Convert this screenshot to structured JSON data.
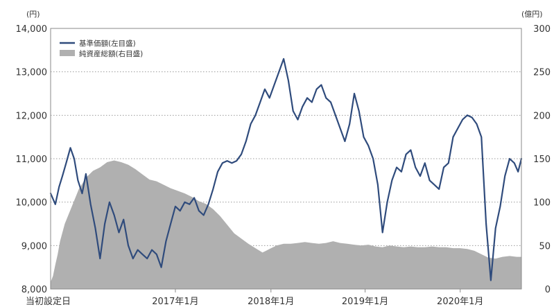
{
  "chart_data": {
    "type": "line",
    "left_unit": "(円)",
    "right_unit": "(億円)",
    "left_ticks": [
      "14,000",
      "13,000",
      "12,000",
      "11,000",
      "10,000",
      "9,000",
      "8,000"
    ],
    "right_ticks": [
      "300",
      "250",
      "200",
      "150",
      "100",
      "50",
      "0"
    ],
    "x_ticks": [
      "当初設定日",
      "2017年1月",
      "2018年1月",
      "2019年1月",
      "2020年1月"
    ],
    "ylim_left": [
      8000,
      14000
    ],
    "ylim_right": [
      0,
      300
    ],
    "grid": "horizontal-dotted",
    "legend_position": "top-left",
    "colors": {
      "nav": "#2f4b7c",
      "assets": "#b0b0b0",
      "frame": "#8a8a8a",
      "grid": "#9a9a9a"
    },
    "series": [
      {
        "name": "基準価額(左目盛)",
        "kind": "line",
        "axis": "left",
        "x": [
          0,
          0.01,
          0.018,
          0.025,
          0.033,
          0.042,
          0.05,
          0.058,
          0.067,
          0.075,
          0.085,
          0.095,
          0.105,
          0.115,
          0.125,
          0.135,
          0.145,
          0.155,
          0.165,
          0.175,
          0.185,
          0.195,
          0.205,
          0.215,
          0.225,
          0.235,
          0.245,
          0.255,
          0.265,
          0.275,
          0.285,
          0.295,
          0.305,
          0.315,
          0.325,
          0.335,
          0.345,
          0.355,
          0.365,
          0.375,
          0.385,
          0.395,
          0.405,
          0.415,
          0.425,
          0.435,
          0.445,
          0.455,
          0.465,
          0.475,
          0.485,
          0.495,
          0.505,
          0.515,
          0.525,
          0.535,
          0.545,
          0.555,
          0.565,
          0.575,
          0.585,
          0.595,
          0.605,
          0.615,
          0.625,
          0.635,
          0.645,
          0.655,
          0.665,
          0.675,
          0.685,
          0.695,
          0.705,
          0.715,
          0.725,
          0.735,
          0.745,
          0.755,
          0.765,
          0.775,
          0.785,
          0.795,
          0.805,
          0.815,
          0.825,
          0.835,
          0.845,
          0.855,
          0.865,
          0.875,
          0.885,
          0.895,
          0.905,
          0.915,
          0.925,
          0.935,
          0.945,
          0.955,
          0.965,
          0.975,
          0.985,
          0.993,
          1.0
        ],
        "values": [
          10200,
          9950,
          10350,
          10600,
          10900,
          11250,
          11000,
          10500,
          10200,
          10650,
          9950,
          9400,
          8700,
          9500,
          10000,
          9700,
          9300,
          9600,
          9000,
          8700,
          8900,
          8800,
          8700,
          8900,
          8800,
          8500,
          9100,
          9500,
          9900,
          9800,
          10000,
          9950,
          10100,
          9800,
          9700,
          9950,
          10300,
          10700,
          10900,
          10950,
          10900,
          10950,
          11100,
          11400,
          11800,
          12000,
          12300,
          12600,
          12400,
          12700,
          13000,
          13300,
          12800,
          12100,
          11900,
          12200,
          12400,
          12300,
          12600,
          12700,
          12400,
          12300,
          12000,
          11700,
          11400,
          11800,
          12500,
          12100,
          11500,
          11300,
          11000,
          10400,
          9300,
          10000,
          10500,
          10800,
          10700,
          11100,
          11200,
          10800,
          10600,
          10900,
          10500,
          10400,
          10300,
          10800,
          10900,
          11500,
          11700,
          11900,
          12000,
          11950,
          11800,
          11500,
          9500,
          8200,
          9400,
          9900,
          10600,
          11000,
          10900,
          10700,
          11000
        ]
      },
      {
        "name": "純資産総額(右目盛)",
        "kind": "area",
        "axis": "right",
        "x": [
          0,
          0.005,
          0.01,
          0.015,
          0.02,
          0.03,
          0.045,
          0.06,
          0.075,
          0.09,
          0.105,
          0.12,
          0.135,
          0.15,
          0.165,
          0.18,
          0.195,
          0.21,
          0.225,
          0.24,
          0.255,
          0.27,
          0.285,
          0.3,
          0.315,
          0.33,
          0.345,
          0.36,
          0.375,
          0.39,
          0.405,
          0.42,
          0.435,
          0.45,
          0.465,
          0.48,
          0.495,
          0.51,
          0.525,
          0.54,
          0.555,
          0.57,
          0.585,
          0.6,
          0.615,
          0.63,
          0.645,
          0.66,
          0.675,
          0.69,
          0.705,
          0.72,
          0.735,
          0.75,
          0.765,
          0.78,
          0.795,
          0.81,
          0.825,
          0.84,
          0.855,
          0.87,
          0.885,
          0.9,
          0.915,
          0.93,
          0.945,
          0.96,
          0.975,
          0.99,
          1.0
        ],
        "values": [
          8,
          15,
          28,
          40,
          55,
          75,
          95,
          115,
          128,
          136,
          140,
          146,
          148,
          146,
          143,
          138,
          132,
          126,
          124,
          120,
          116,
          113,
          110,
          106,
          101,
          98,
          92,
          84,
          74,
          64,
          58,
          52,
          47,
          42,
          46,
          50,
          52,
          52,
          53,
          54,
          53,
          52,
          53,
          55,
          53,
          52,
          51,
          50,
          51,
          49,
          48,
          50,
          49,
          48,
          49,
          48,
          48,
          49,
          48,
          48,
          47,
          47,
          46,
          44,
          40,
          36,
          35,
          37,
          38,
          37,
          37
        ]
      }
    ]
  }
}
